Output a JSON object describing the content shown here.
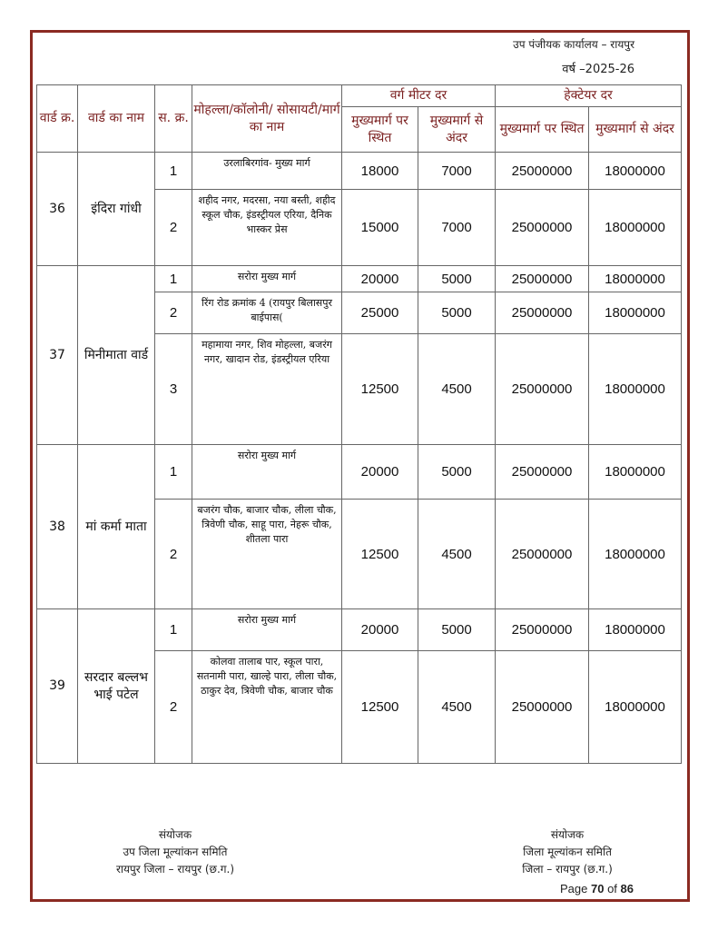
{
  "header": {
    "office": "उप पंजीयक कार्यालय – रायपुर",
    "year": "वर्ष –2025-26"
  },
  "table": {
    "headers": {
      "ward_no": "वार्ड क्र.",
      "ward_name": "वार्ड का नाम",
      "serial": "स. क्र.",
      "locality": "मोहल्ला/कॉलोनी/ सोसायटी/मार्ग का नाम",
      "sqm_rate": "वर्ग मीटर दर",
      "hectare_rate": "हेक्टेयर दर",
      "sqm_on_main": "मुख्यमार्ग पर स्थित",
      "sqm_inside": "मुख्यमार्ग से अंदर",
      "ha_on_main": "मुख्यमार्ग पर स्थित",
      "ha_inside": "मुख्यमार्ग से अंदर"
    },
    "wards": [
      {
        "no": "36",
        "name": "इंदिरा गांधी",
        "rows": [
          {
            "sn": "1",
            "locality": "उरलाबिरगांव- मुख्य मार्ग",
            "sqm_main": "18000",
            "sqm_inside": "7000",
            "ha_main": "25000000",
            "ha_inside": "18000000"
          },
          {
            "sn": "2",
            "locality": "शहीद नगर, मदरसा, नया बस्ती, शहीद स्कूल चौक, इंडस्ट्रीयल एरिया, दैनिक भास्कर प्रेस",
            "sqm_main": "15000",
            "sqm_inside": "7000",
            "ha_main": "25000000",
            "ha_inside": "18000000"
          }
        ]
      },
      {
        "no": "37",
        "name": "मिनीमाता वार्ड",
        "rows": [
          {
            "sn": "1",
            "locality": "सरोरा मुख्य मार्ग",
            "sqm_main": "20000",
            "sqm_inside": "5000",
            "ha_main": "25000000",
            "ha_inside": "18000000"
          },
          {
            "sn": "2",
            "locality": "रिंग रोड क्रमांक 4 (रायपुर बिलासपुर बाईपास(",
            "sqm_main": "25000",
            "sqm_inside": "5000",
            "ha_main": "25000000",
            "ha_inside": "18000000"
          },
          {
            "sn": "3",
            "locality": "महामाया नगर, शिव मोहल्ला, बजरंग नगर, खादान रोड, इंडस्ट्रीयल एरिया",
            "sqm_main": "12500",
            "sqm_inside": "4500",
            "ha_main": "25000000",
            "ha_inside": "18000000"
          }
        ]
      },
      {
        "no": "38",
        "name": "मां कर्मा माता",
        "rows": [
          {
            "sn": "1",
            "locality": "सरोरा मुख्य मार्ग",
            "sqm_main": "20000",
            "sqm_inside": "5000",
            "ha_main": "25000000",
            "ha_inside": "18000000"
          },
          {
            "sn": "2",
            "locality": "बजरंग चौक, बाजार चौक, लीला  चौक, त्रिवेणी चौक, साहू पारा, नेहरू चौक, शीतला पारा",
            "sqm_main": "12500",
            "sqm_inside": "4500",
            "ha_main": "25000000",
            "ha_inside": "18000000"
          }
        ]
      },
      {
        "no": "39",
        "name": "सरदार बल्लभ भाई पटेल",
        "rows": [
          {
            "sn": "1",
            "locality": "सरोरा मुख्य मार्ग",
            "sqm_main": "20000",
            "sqm_inside": "5000",
            "ha_main": "25000000",
            "ha_inside": "18000000"
          },
          {
            "sn": "2",
            "locality": "कोलवा तालाब पार, स्कूल पारा, सतनामी पारा, खाल्हे पारा, लीला चौक, ठाकुर देव, त्रिवेणी चौक, बाजार चौक",
            "sqm_main": "12500",
            "sqm_inside": "4500",
            "ha_main": "25000000",
            "ha_inside": "18000000"
          }
        ]
      }
    ]
  },
  "footer": {
    "left": {
      "line1": "संयोजक",
      "line2": "उप जिला मूल्यांकन समिति",
      "line3": "रायपुर जिला – रायपुर (छ.ग.)"
    },
    "right": {
      "line1": "संयोजक",
      "line2": "जिला मूल्यांकन समिति",
      "line3": "जिला – रायपुर (छ.ग.)"
    },
    "page": {
      "prefix": "Page",
      "current": "70",
      "of": "of",
      "total": "86"
    }
  },
  "colors": {
    "frame": "#8b2a22",
    "header_text": "#7a1f1f"
  }
}
